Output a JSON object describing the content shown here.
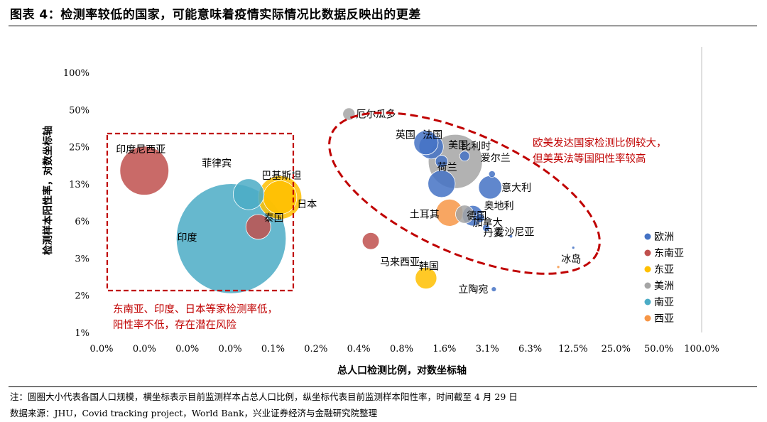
{
  "title": "图表 4：检测率较低的国家，可能意味着疫情实际情况比数据反映出的更差",
  "footer": {
    "note": "注：圆圈大小代表各国人口规模，横坐标表示目前监测样本占总人口比例，纵坐标代表目前监测样本阳性率，时间截至 4 月 29 日",
    "source": "数据来源：JHU，Covid tracking project，World Bank，兴业证券经济与金融研究院整理"
  },
  "colors": {
    "欧洲": "#4472c4",
    "东南亚": "#c0504d",
    "东亚": "#ffc000",
    "美洲": "#a5a5a5",
    "南亚": "#4bacc6",
    "西亚": "#f79646",
    "annotation": "#c00000"
  },
  "chart_data": {
    "type": "scatter",
    "xlabel": "总人口检测比例，对数坐标轴",
    "ylabel": "检测样本阳性率，对数坐标轴",
    "x_scale": "log",
    "y_scale": "log",
    "x_ticks": [
      "0.0%",
      "0.0%",
      "0.0%",
      "0.0%",
      "0.1%",
      "0.2%",
      "0.4%",
      "0.8%",
      "1.6%",
      "3.1%",
      "6.3%",
      "12.5%",
      "25.0%",
      "50.0%",
      "100.0%"
    ],
    "x_tick_values": [
      6e-05,
      0.00012,
      0.00024,
      0.00049,
      0.00098,
      0.00195,
      0.0039,
      0.0078,
      0.0156,
      0.0313,
      0.0625,
      0.125,
      0.25,
      0.5,
      1.0
    ],
    "y_ticks": [
      "1%",
      "2%",
      "3%",
      "6%",
      "13%",
      "25%",
      "50%",
      "100%"
    ],
    "y_tick_values": [
      0.0078,
      0.0156,
      0.0313,
      0.0625,
      0.125,
      0.25,
      0.5,
      1.0
    ],
    "xlim": [
      6e-05,
      1.0
    ],
    "ylim": [
      0.0078,
      1.0
    ],
    "grid": false,
    "legend_position": "bottom-right",
    "legend": [
      "欧洲",
      "东南亚",
      "东亚",
      "美洲",
      "南亚",
      "西亚"
    ],
    "bubble_size": "population",
    "points": [
      {
        "label": "厄尔瓜多",
        "group": "美洲",
        "x": 0.0033,
        "y": 0.46,
        "pop": 17
      },
      {
        "label": "英国",
        "group": "欧洲",
        "x": 0.0115,
        "y": 0.27,
        "pop": 66
      },
      {
        "label": "法国",
        "group": "欧洲",
        "x": 0.0125,
        "y": 0.25,
        "pop": 67
      },
      {
        "label": "美国",
        "group": "美洲",
        "x": 0.0185,
        "y": 0.19,
        "pop": 328
      },
      {
        "label": "比利时",
        "group": "欧洲",
        "x": 0.0215,
        "y": 0.21,
        "pop": 11
      },
      {
        "label": "荷兰",
        "group": "欧洲",
        "x": 0.0148,
        "y": 0.19,
        "pop": 17
      },
      {
        "label": "爱尔兰",
        "group": "欧洲",
        "x": 0.0335,
        "y": 0.15,
        "pop": 5
      },
      {
        "label": "意大利",
        "group": "欧洲",
        "x": 0.0325,
        "y": 0.117,
        "pop": 60
      },
      {
        "label": "",
        "group": "欧洲",
        "x": 0.0148,
        "y": 0.125,
        "pop": 83
      },
      {
        "label": "土耳其",
        "group": "西亚",
        "x": 0.0168,
        "y": 0.073,
        "pop": 82
      },
      {
        "label": "德国",
        "group": "美洲",
        "x": 0.0215,
        "y": 0.071,
        "pop": 37
      },
      {
        "label": "奥地利",
        "group": "欧洲",
        "x": 0.0245,
        "y": 0.069,
        "pop": 47
      },
      {
        "label": "加拿大",
        "group": "欧洲",
        "x": 0.0275,
        "y": 0.066,
        "pop": 9
      },
      {
        "label": "丹麦",
        "group": "欧洲",
        "x": 0.0305,
        "y": 0.055,
        "pop": 6
      },
      {
        "label": "爱沙尼亚",
        "group": "欧洲",
        "x": 0.0455,
        "y": 0.047,
        "pop": 1.3
      },
      {
        "label": "冰岛",
        "group": "欧洲",
        "x": 0.125,
        "y": 0.038,
        "pop": 0.36
      },
      {
        "label": "",
        "group": "西亚",
        "x": 0.098,
        "y": 0.0265,
        "pop": 1
      },
      {
        "label": "立陶宛",
        "group": "欧洲",
        "x": 0.0345,
        "y": 0.0175,
        "pop": 2.8
      },
      {
        "label": "印度尼西亚",
        "group": "东南亚",
        "x": 0.00012,
        "y": 0.16,
        "pop": 268
      },
      {
        "label": "菲律宾",
        "group": "南亚",
        "x": 0.00065,
        "y": 0.103,
        "pop": 107
      },
      {
        "label": "巴基斯坦",
        "group": "东亚",
        "x": 0.00108,
        "y": 0.097,
        "pop": 212
      },
      {
        "label": "泰国",
        "group": "东南亚",
        "x": 0.00076,
        "y": 0.056,
        "pop": 69
      },
      {
        "label": "印度",
        "group": "南亚",
        "x": 0.00049,
        "y": 0.045,
        "pop": 1353
      },
      {
        "label": "马来西亚",
        "group": "东南亚",
        "x": 0.0047,
        "y": 0.043,
        "pop": 32
      },
      {
        "label": "韩国",
        "group": "东亚",
        "x": 0.0115,
        "y": 0.0215,
        "pop": 52
      },
      {
        "label": "日本",
        "group": "东亚",
        "x": 0.00108,
        "y": 0.097,
        "pop": 126
      }
    ],
    "annotations": [
      {
        "id": "left",
        "text_lines": [
          "东南亚、印度、日本等家检测率低，",
          "阳性率不低，存在潜在风险"
        ]
      },
      {
        "id": "right",
        "text_lines": [
          "欧美发达国家检测比例较大，",
          "但美英法等国阳性率较高"
        ]
      }
    ]
  }
}
